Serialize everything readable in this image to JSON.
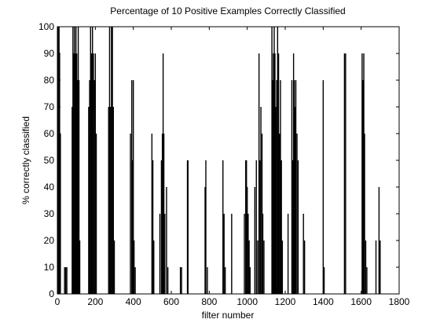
{
  "chart_data": {
    "type": "bar",
    "title": "Percentage of 10 Positive Examples Correctly Classified",
    "x_label": "filter number",
    "y_label": "% correctly classified",
    "color": "#000000",
    "x": [
      3,
      6,
      9,
      12,
      16,
      38,
      44,
      50,
      78,
      82,
      86,
      90,
      94,
      98,
      102,
      106,
      110,
      114,
      118,
      165,
      170,
      175,
      180,
      185,
      190,
      195,
      200,
      205,
      270,
      275,
      280,
      285,
      290,
      295,
      300,
      385,
      392,
      396,
      400,
      404,
      410,
      498,
      503,
      508,
      540,
      548,
      553,
      557,
      561,
      566,
      575,
      582,
      648,
      654,
      685,
      688,
      778,
      782,
      790,
      872,
      878,
      884,
      918,
      985,
      992,
      996,
      1000,
      1005,
      1010,
      1015,
      1040,
      1048,
      1055,
      1062,
      1068,
      1072,
      1078,
      1082,
      1088,
      1130,
      1134,
      1138,
      1142,
      1146,
      1150,
      1155,
      1160,
      1165,
      1170,
      1175,
      1180,
      1185,
      1215,
      1235,
      1240,
      1244,
      1248,
      1252,
      1256,
      1262,
      1268,
      1296,
      1302,
      1400,
      1405,
      1512,
      1518,
      1605,
      1610,
      1614,
      1618,
      1624,
      1630,
      1678,
      1694,
      1700
    ],
    "values": [
      100,
      90,
      100,
      90,
      60,
      10,
      10,
      10,
      70,
      100,
      90,
      100,
      90,
      100,
      90,
      80,
      100,
      80,
      20,
      70,
      80,
      100,
      90,
      100,
      90,
      80,
      90,
      60,
      70,
      100,
      70,
      100,
      100,
      70,
      20,
      60,
      80,
      50,
      80,
      20,
      10,
      60,
      50,
      20,
      30,
      50,
      60,
      90,
      60,
      30,
      40,
      10,
      10,
      10,
      50,
      50,
      40,
      50,
      10,
      50,
      30,
      10,
      30,
      30,
      50,
      50,
      40,
      30,
      20,
      10,
      40,
      50,
      20,
      90,
      50,
      70,
      60,
      30,
      20,
      100,
      80,
      90,
      100,
      90,
      70,
      80,
      100,
      90,
      60,
      80,
      50,
      20,
      30,
      80,
      50,
      90,
      80,
      70,
      80,
      60,
      50,
      30,
      20,
      80,
      10,
      90,
      90,
      90,
      80,
      90,
      60,
      20,
      10,
      20,
      40,
      20
    ],
    "xlim": [
      0,
      1800
    ],
    "xticks": [
      0,
      200,
      400,
      600,
      800,
      1000,
      1200,
      1400,
      1600,
      1800
    ],
    "ylim": [
      0,
      100
    ],
    "yticks": [
      0,
      10,
      20,
      30,
      40,
      50,
      60,
      70,
      80,
      90,
      100
    ],
    "grid": false
  }
}
